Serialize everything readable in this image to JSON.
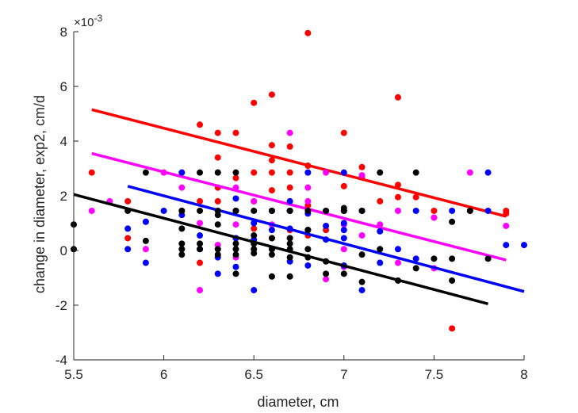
{
  "chart_data": {
    "type": "scatter",
    "title": "",
    "xlabel": "diameter, cm",
    "ylabel": "change in diameter, exp2, cm/d",
    "exponent_label": "×10",
    "exponent_power": "-3",
    "xlim": [
      5.5,
      8
    ],
    "ylim": [
      -4,
      8
    ],
    "x_ticks": [
      5.5,
      6,
      6.5,
      7,
      7.5,
      8
    ],
    "x_tick_labels": [
      "5.5",
      "6",
      "6.5",
      "7",
      "7.5",
      "8"
    ],
    "y_ticks": [
      -4,
      -2,
      0,
      2,
      4,
      6,
      8
    ],
    "y_tick_labels": [
      "-4",
      "-2",
      "0",
      "2",
      "4",
      "6",
      "8"
    ],
    "grid": false,
    "series": [
      {
        "color": "#ff0000",
        "fit_line": [
          [
            5.6,
            5.15
          ],
          [
            7.9,
            1.25
          ]
        ],
        "points": [
          [
            5.6,
            2.85
          ],
          [
            5.8,
            1.8
          ],
          [
            5.8,
            0.45
          ],
          [
            6.1,
            2.85
          ],
          [
            6.1,
            1.45
          ],
          [
            6.2,
            4.6
          ],
          [
            6.2,
            1.8
          ],
          [
            6.2,
            -0.45
          ],
          [
            6.3,
            4.3
          ],
          [
            6.3,
            3.4
          ],
          [
            6.3,
            2.85
          ],
          [
            6.3,
            2.3
          ],
          [
            6.3,
            1.8
          ],
          [
            6.4,
            4.3
          ],
          [
            6.4,
            2.65
          ],
          [
            6.4,
            1.45
          ],
          [
            6.4,
            0.45
          ],
          [
            6.5,
            5.4
          ],
          [
            6.5,
            2.85
          ],
          [
            6.5,
            1.8
          ],
          [
            6.5,
            0.8
          ],
          [
            6.6,
            5.7
          ],
          [
            6.6,
            3.85
          ],
          [
            6.6,
            3.3
          ],
          [
            6.6,
            2.85
          ],
          [
            6.6,
            2.2
          ],
          [
            6.6,
            1.45
          ],
          [
            6.6,
            0.45
          ],
          [
            6.7,
            3.8
          ],
          [
            6.7,
            2.85
          ],
          [
            6.7,
            2.3
          ],
          [
            6.7,
            1.45
          ],
          [
            6.7,
            0.75
          ],
          [
            6.8,
            7.95
          ],
          [
            6.8,
            3.1
          ],
          [
            6.8,
            2.85
          ],
          [
            6.8,
            1.65
          ],
          [
            6.8,
            0.55
          ],
          [
            6.9,
            1.45
          ],
          [
            6.9,
            0.75
          ],
          [
            7.0,
            4.3
          ],
          [
            7.0,
            2.35
          ],
          [
            7.0,
            1.45
          ],
          [
            7.1,
            3.05
          ],
          [
            7.1,
            2.7
          ],
          [
            7.1,
            1.45
          ],
          [
            7.2,
            1.8
          ],
          [
            7.3,
            5.6
          ],
          [
            7.3,
            2.4
          ],
          [
            7.3,
            1.95
          ],
          [
            7.4,
            1.95
          ],
          [
            7.5,
            1.45
          ],
          [
            7.5,
            1.2
          ],
          [
            7.6,
            -2.85
          ],
          [
            7.7,
            1.45
          ],
          [
            7.9,
            1.45
          ],
          [
            7.9,
            1.35
          ]
        ]
      },
      {
        "color": "#ff00ff",
        "fit_line": [
          [
            5.6,
            3.55
          ],
          [
            7.9,
            -0.35
          ]
        ],
        "points": [
          [
            5.6,
            1.45
          ],
          [
            5.7,
            1.8
          ],
          [
            5.9,
            1.05
          ],
          [
            5.9,
            0.05
          ],
          [
            6.0,
            2.85
          ],
          [
            6.1,
            2.3
          ],
          [
            6.2,
            1.0
          ],
          [
            6.2,
            -1.45
          ],
          [
            6.3,
            0.2
          ],
          [
            6.4,
            2.3
          ],
          [
            6.4,
            0.95
          ],
          [
            6.4,
            -0.25
          ],
          [
            6.5,
            1.8
          ],
          [
            6.6,
            1.45
          ],
          [
            6.6,
            0.95
          ],
          [
            6.7,
            4.3
          ],
          [
            6.7,
            1.45
          ],
          [
            6.7,
            0.45
          ],
          [
            6.8,
            2.3
          ],
          [
            6.8,
            1.8
          ],
          [
            6.8,
            0.75
          ],
          [
            6.9,
            2.85
          ],
          [
            6.9,
            -1.05
          ],
          [
            7.0,
            0.95
          ],
          [
            7.0,
            0.05
          ],
          [
            7.0,
            -0.6
          ],
          [
            7.1,
            2.75
          ],
          [
            7.1,
            0.55
          ],
          [
            7.2,
            0.95
          ],
          [
            7.3,
            1.45
          ],
          [
            7.3,
            -0.45
          ],
          [
            7.5,
            1.2
          ],
          [
            7.5,
            -0.65
          ],
          [
            7.7,
            2.85
          ],
          [
            7.9,
            0.9
          ]
        ]
      },
      {
        "color": "#0000ff",
        "fit_line": [
          [
            5.8,
            2.35
          ],
          [
            8.0,
            -1.5
          ]
        ],
        "points": [
          [
            5.8,
            0.8
          ],
          [
            5.8,
            0.05
          ],
          [
            5.9,
            1.05
          ],
          [
            5.9,
            -0.45
          ],
          [
            6.0,
            1.45
          ],
          [
            6.1,
            2.85
          ],
          [
            6.1,
            1.3
          ],
          [
            6.2,
            0.55
          ],
          [
            6.2,
            0.05
          ],
          [
            6.3,
            -0.25
          ],
          [
            6.3,
            -0.85
          ],
          [
            6.4,
            1.9
          ],
          [
            6.4,
            1.45
          ],
          [
            6.4,
            0.45
          ],
          [
            6.4,
            -0.6
          ],
          [
            6.5,
            1.0
          ],
          [
            6.5,
            0.4
          ],
          [
            6.5,
            -1.45
          ],
          [
            6.6,
            1.45
          ],
          [
            6.6,
            0.75
          ],
          [
            6.6,
            0.05
          ],
          [
            6.7,
            1.8
          ],
          [
            6.7,
            1.45
          ],
          [
            6.7,
            0.8
          ],
          [
            6.7,
            -0.4
          ],
          [
            6.8,
            2.85
          ],
          [
            6.8,
            1.35
          ],
          [
            6.8,
            0.75
          ],
          [
            6.8,
            -0.55
          ],
          [
            6.9,
            0.9
          ],
          [
            6.9,
            0.4
          ],
          [
            7.0,
            2.85
          ],
          [
            7.0,
            1.45
          ],
          [
            7.0,
            1.0
          ],
          [
            7.0,
            0.75
          ],
          [
            7.0,
            0.45
          ],
          [
            7.0,
            -0.55
          ],
          [
            7.1,
            1.45
          ],
          [
            7.1,
            -1.45
          ],
          [
            7.2,
            0.7
          ],
          [
            7.2,
            -0.45
          ],
          [
            7.3,
            0.05
          ],
          [
            7.4,
            1.45
          ],
          [
            7.4,
            -0.3
          ],
          [
            7.6,
            1.45
          ],
          [
            7.8,
            2.85
          ],
          [
            7.8,
            1.45
          ],
          [
            7.9,
            0.2
          ],
          [
            8.0,
            0.2
          ]
        ]
      },
      {
        "color": "#000000",
        "fit_line": [
          [
            5.5,
            2.05
          ],
          [
            7.8,
            -1.95
          ]
        ],
        "points": [
          [
            5.5,
            0.95
          ],
          [
            5.5,
            0.05
          ],
          [
            5.8,
            1.45
          ],
          [
            5.9,
            2.85
          ],
          [
            5.9,
            0.35
          ],
          [
            6.1,
            1.45
          ],
          [
            6.1,
            0.8
          ],
          [
            6.1,
            0.25
          ],
          [
            6.1,
            0.05
          ],
          [
            6.1,
            -0.15
          ],
          [
            6.2,
            2.85
          ],
          [
            6.2,
            1.45
          ],
          [
            6.2,
            0.25
          ],
          [
            6.2,
            0.05
          ],
          [
            6.3,
            2.85
          ],
          [
            6.3,
            1.45
          ],
          [
            6.3,
            1.3
          ],
          [
            6.3,
            0.95
          ],
          [
            6.3,
            0.05
          ],
          [
            6.3,
            -0.15
          ],
          [
            6.4,
            2.85
          ],
          [
            6.4,
            1.45
          ],
          [
            6.4,
            0.25
          ],
          [
            6.4,
            0.05
          ],
          [
            6.4,
            -0.15
          ],
          [
            6.4,
            -0.85
          ],
          [
            6.5,
            1.45
          ],
          [
            6.5,
            0.55
          ],
          [
            6.5,
            0.25
          ],
          [
            6.5,
            0.05
          ],
          [
            6.5,
            -0.1
          ],
          [
            6.6,
            1.45
          ],
          [
            6.6,
            0.45
          ],
          [
            6.6,
            0.05
          ],
          [
            6.6,
            -0.15
          ],
          [
            6.6,
            -0.95
          ],
          [
            6.7,
            1.45
          ],
          [
            6.7,
            0.45
          ],
          [
            6.7,
            0.25
          ],
          [
            6.7,
            0.05
          ],
          [
            6.7,
            -0.25
          ],
          [
            6.7,
            -0.95
          ],
          [
            6.8,
            1.45
          ],
          [
            6.8,
            0.75
          ],
          [
            6.8,
            0.05
          ],
          [
            6.8,
            -0.25
          ],
          [
            6.9,
            1.45
          ],
          [
            6.9,
            -0.4
          ],
          [
            6.9,
            -0.85
          ],
          [
            7.0,
            1.55
          ],
          [
            7.0,
            1.45
          ],
          [
            7.0,
            -0.85
          ],
          [
            7.1,
            1.45
          ],
          [
            7.1,
            -0.15
          ],
          [
            7.1,
            -1.15
          ],
          [
            7.2,
            2.85
          ],
          [
            7.2,
            0.05
          ],
          [
            7.3,
            -1.1
          ],
          [
            7.4,
            2.85
          ],
          [
            7.4,
            -0.65
          ],
          [
            7.5,
            -0.3
          ],
          [
            7.6,
            1.05
          ],
          [
            7.6,
            -0.3
          ],
          [
            7.6,
            -1.1
          ],
          [
            7.7,
            1.45
          ],
          [
            7.8,
            -0.3
          ]
        ]
      }
    ]
  }
}
